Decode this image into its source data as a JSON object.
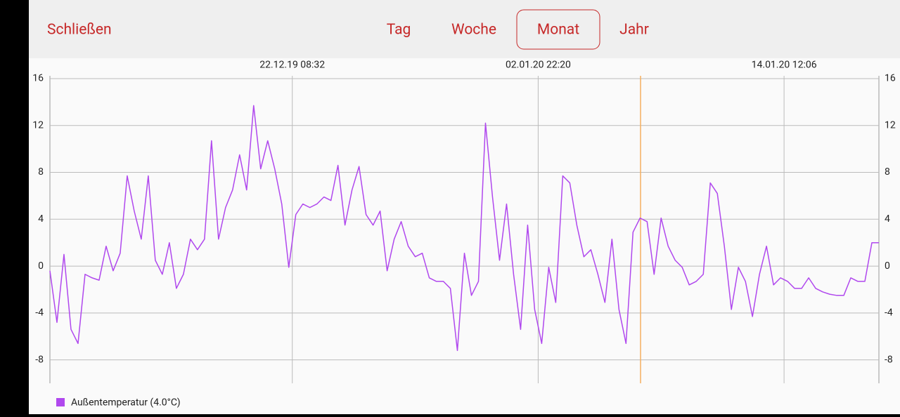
{
  "toolbar": {
    "close": "Schließen",
    "tabs": [
      "Tag",
      "Woche",
      "Monat",
      "Jahr"
    ],
    "selected": "Monat"
  },
  "chart_data": {
    "type": "line",
    "series": [
      {
        "name": "Außentemperatur (4.0°C)",
        "color": "#b048ee",
        "values": [
          -0.4,
          -4.8,
          1.0,
          -5.4,
          -6.6,
          -0.7,
          -1,
          -1.2,
          1.7,
          -0.4,
          1.1,
          7.7,
          4.7,
          2.3,
          7.7,
          0.5,
          -0.7,
          2,
          -1.9,
          -0.7,
          2.3,
          1.4,
          2.3,
          10.7,
          2.3,
          5,
          6.5,
          9.5,
          6.5,
          13.7,
          8.3,
          10.7,
          8.3,
          5.3,
          -0.1,
          4.4,
          5.3,
          5,
          5.3,
          5.9,
          5.6,
          8.6,
          3.5,
          6.5,
          8.5,
          4.4,
          3.5,
          4.7,
          -0.4,
          2.3,
          3.8,
          1.7,
          0.8,
          1.1,
          -1,
          -1.3,
          -1.3,
          -1.9,
          -7.2,
          1.1,
          -2.5,
          -1.3,
          12.2,
          5.9,
          0.5,
          5.3,
          -0.7,
          -5.4,
          3.5,
          -3.7,
          -6.6,
          -0.1,
          -3.1,
          7.7,
          7.1,
          3.5,
          0.8,
          1.4,
          -0.7,
          -3.1,
          2.3,
          -3.7,
          -6.6,
          2.9,
          4.1,
          3.8,
          -0.7,
          4.1,
          1.7,
          0.5,
          -0.1,
          -1.6,
          -1.3,
          -0.7,
          7.1,
          6.2,
          1.7,
          -3.7,
          -0.1,
          -1.3,
          -4.3,
          -0.7,
          1.7,
          -1.6,
          -1,
          -1.3,
          -1.9,
          -1.9,
          -1,
          -1.9,
          -2.2,
          -2.4,
          -2.5,
          -2.5,
          -1,
          -1.3,
          -1.3,
          2,
          2.0
        ]
      }
    ],
    "xlim": [
      0,
      118
    ],
    "xticks": [
      {
        "value": 34.5,
        "label": "22.12.19 08:32"
      },
      {
        "value": 69.5,
        "label": "02.01.20 22:20"
      },
      {
        "value": 104.5,
        "label": "14.01.20 12:06"
      }
    ],
    "ylim": [
      -10,
      16
    ],
    "yticks": [
      16,
      12,
      8,
      4,
      0,
      -4,
      -8
    ],
    "grid": true
  }
}
